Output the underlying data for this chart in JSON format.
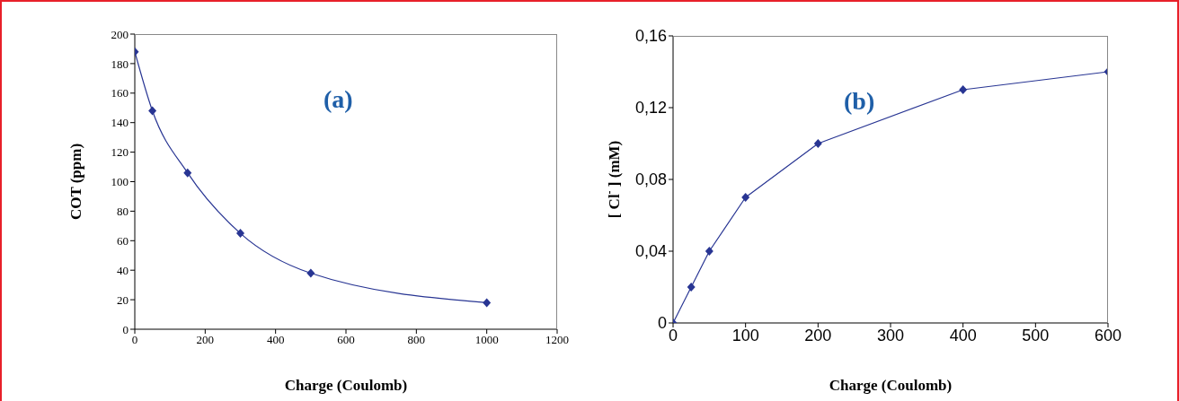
{
  "chart_data": [
    {
      "type": "line",
      "xlabel": "Charge (Coulomb)",
      "ylabel": "COT (ppm)",
      "annotations": [
        "(a)"
      ],
      "x": [
        0,
        50,
        150,
        300,
        500,
        1000
      ],
      "series": [
        {
          "color": "#283593",
          "values": [
            188,
            148,
            106,
            65,
            38,
            18
          ]
        }
      ],
      "xlim": [
        0,
        1200
      ],
      "xticks": [
        0,
        200,
        400,
        600,
        800,
        1000,
        1200
      ],
      "ylim": [
        0,
        200
      ],
      "yticks": [
        0,
        20,
        40,
        60,
        80,
        100,
        120,
        140,
        160,
        180,
        200
      ],
      "grid": false,
      "legend": false,
      "marker": "diamond",
      "line_style": "solid"
    },
    {
      "type": "line",
      "xlabel": "Charge (Coulomb)",
      "ylabel": "[ Cl$^{-}$ ] (mM)",
      "annotations": [
        "(b)"
      ],
      "x": [
        0,
        25,
        50,
        100,
        200,
        400,
        600
      ],
      "series": [
        {
          "color": "#283593",
          "values": [
            0,
            0.02,
            0.04,
            0.07,
            0.1,
            0.13,
            0.14
          ]
        }
      ],
      "xlim": [
        0,
        600
      ],
      "xticks": [
        0,
        100,
        200,
        300,
        400,
        500,
        600
      ],
      "ylim": [
        0,
        0.16
      ],
      "yticks": [
        0,
        {
          "value": 0.04,
          "label": "0,04"
        },
        {
          "value": 0.08,
          "label": "0,08"
        },
        {
          "value": 0.12,
          "label": "0,12"
        },
        {
          "value": 0.16,
          "label": "0,16"
        }
      ],
      "grid": false,
      "legend": false,
      "marker": "diamond",
      "line_style": "solid"
    }
  ]
}
